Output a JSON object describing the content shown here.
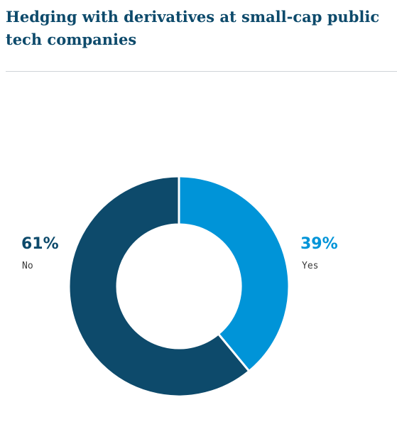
{
  "title": "Hedging with derivatives at small-cap public tech companies",
  "chart_data": {
    "type": "pie",
    "title": "Hedging with derivatives at small-cap public tech companies",
    "slices": [
      {
        "label": "Yes",
        "value": 39,
        "value_label": "39%",
        "color": "#0094d8"
      },
      {
        "label": "No",
        "value": 61,
        "value_label": "61%",
        "color": "#0d4a6b"
      }
    ],
    "style": "donut",
    "legend": "none"
  }
}
